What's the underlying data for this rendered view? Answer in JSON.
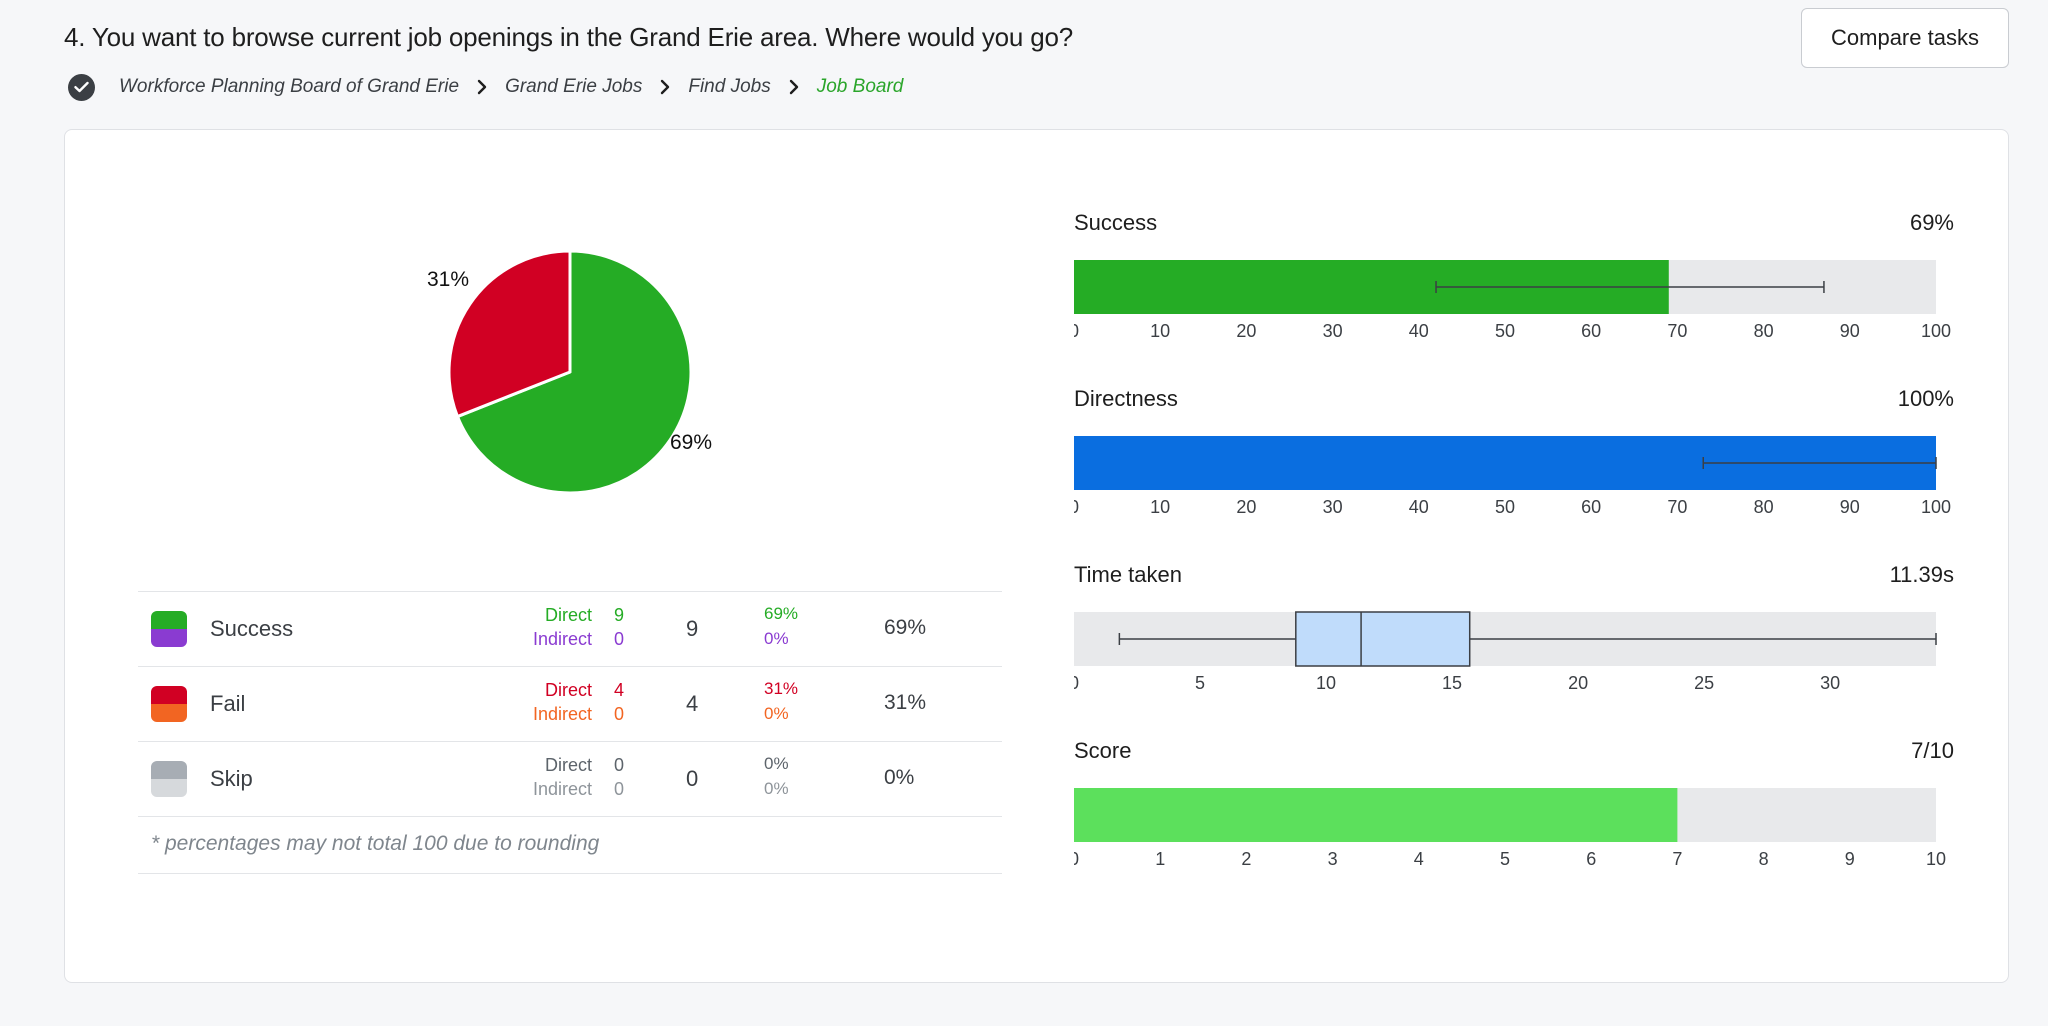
{
  "header": {
    "question": "4. You want to browse current job openings in the Grand Erie area. Where would you go?",
    "compare_label": "Compare tasks"
  },
  "breadcrumb": {
    "icon": "check-circle-icon",
    "items": [
      "Workforce Planning Board of Grand Erie",
      "Grand Erie Jobs",
      "Find Jobs",
      "Job Board"
    ]
  },
  "colors": {
    "success": "#25ac25",
    "indirect_success": "#8a3bd1",
    "fail": "#d10023",
    "indirect_fail": "#f26522",
    "skip": "#a7adb4",
    "indirect_skip": "#d6d9dc",
    "directness": "#0a6ee0",
    "score": "#5ce05c",
    "track": "#e8e9eb",
    "box": "#c0dcfb"
  },
  "chart_data": [
    {
      "type": "pie",
      "slices": [
        {
          "label": "69%",
          "value": 69,
          "color": "#25ac25"
        },
        {
          "label": "31%",
          "value": 31,
          "color": "#d10023"
        }
      ]
    },
    {
      "type": "bar",
      "title": "Success",
      "value_label": "69%",
      "value": 69,
      "error_bar": [
        42,
        87
      ],
      "xlim": [
        0,
        100
      ],
      "ticks": [
        0,
        10,
        20,
        30,
        40,
        50,
        60,
        70,
        80,
        90,
        100
      ]
    },
    {
      "type": "bar",
      "title": "Directness",
      "value_label": "100%",
      "value": 100,
      "error_bar": [
        73,
        100
      ],
      "xlim": [
        0,
        100
      ],
      "ticks": [
        0,
        10,
        20,
        30,
        40,
        50,
        60,
        70,
        80,
        90,
        100
      ]
    },
    {
      "type": "box",
      "title": "Time taken",
      "value_label": "11.39s",
      "min": 1.8,
      "q1": 8.8,
      "median": 11.39,
      "q3": 15.7,
      "max": 34.2,
      "xlim": [
        0,
        34.2
      ],
      "ticks": [
        0,
        5,
        10,
        15,
        20,
        25,
        30
      ]
    },
    {
      "type": "bar",
      "title": "Score",
      "value_label": "7/10",
      "value": 7,
      "xlim": [
        0,
        10
      ],
      "ticks": [
        0,
        1,
        2,
        3,
        4,
        5,
        6,
        7,
        8,
        9,
        10
      ]
    }
  ],
  "legend": {
    "rows": [
      {
        "name": "Success",
        "direct_label": "Direct",
        "direct_value": "9",
        "indirect_label": "Indirect",
        "indirect_value": "0",
        "count": "9",
        "direct_pct": "69%",
        "indirect_pct": "0%",
        "total_pct": "69%"
      },
      {
        "name": "Fail",
        "direct_label": "Direct",
        "direct_value": "4",
        "indirect_label": "Indirect",
        "indirect_value": "0",
        "count": "4",
        "direct_pct": "31%",
        "indirect_pct": "0%",
        "total_pct": "31%"
      },
      {
        "name": "Skip",
        "direct_label": "Direct",
        "direct_value": "0",
        "indirect_label": "Indirect",
        "indirect_value": "0",
        "count": "0",
        "direct_pct": "0%",
        "indirect_pct": "0%",
        "total_pct": "0%"
      }
    ],
    "note": "* percentages may not total 100 due to rounding"
  }
}
